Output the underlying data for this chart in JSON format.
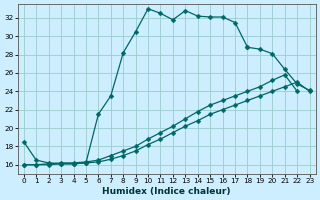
{
  "xlabel": "Humidex (Indice chaleur)",
  "bg_color": "#cceeff",
  "grid_color": "#99cccc",
  "line_color": "#006666",
  "xlim": [
    -0.5,
    23.5
  ],
  "ylim": [
    15.0,
    33.5
  ],
  "xticks": [
    0,
    1,
    2,
    3,
    4,
    5,
    6,
    7,
    8,
    9,
    10,
    11,
    12,
    13,
    14,
    15,
    16,
    17,
    18,
    19,
    20,
    21,
    22,
    23
  ],
  "yticks": [
    16,
    18,
    20,
    22,
    24,
    26,
    28,
    30,
    32
  ],
  "line1_x": [
    0,
    1,
    2,
    3,
    4,
    5,
    6,
    7,
    8,
    9,
    10,
    11,
    12,
    13,
    14,
    15,
    16,
    17,
    18
  ],
  "line1_y": [
    18.5,
    16.5,
    16.2,
    16.1,
    16.1,
    16.2,
    21.5,
    23.5,
    28.2,
    30.5,
    33.0,
    32.5,
    31.8,
    32.8,
    32.2,
    32.1,
    32.1,
    31.5,
    28.8
  ],
  "line2_x": [
    18,
    19,
    20,
    21,
    22,
    23
  ],
  "line2_y": [
    28.8,
    28.6,
    28.1,
    26.4,
    24.8,
    24.1
  ],
  "line3_x": [
    0,
    1,
    2,
    3,
    4,
    5,
    6,
    7,
    8,
    9,
    10,
    11,
    12,
    13,
    14,
    15,
    16,
    17,
    18,
    19,
    20,
    21,
    22
  ],
  "line3_y": [
    16.0,
    16.0,
    16.1,
    16.2,
    16.2,
    16.3,
    16.5,
    17.0,
    17.5,
    18.0,
    18.8,
    19.5,
    20.2,
    21.0,
    21.8,
    22.5,
    23.0,
    23.5,
    24.0,
    24.5,
    25.2,
    25.8,
    24.0
  ],
  "line4_x": [
    0,
    1,
    2,
    3,
    4,
    5,
    6,
    7,
    8,
    9,
    10,
    11,
    12,
    13,
    14,
    15,
    16,
    17,
    18,
    19,
    20,
    21,
    22,
    23
  ],
  "line4_y": [
    16.0,
    16.0,
    16.0,
    16.1,
    16.1,
    16.2,
    16.3,
    16.6,
    17.0,
    17.5,
    18.2,
    18.8,
    19.5,
    20.2,
    20.8,
    21.5,
    22.0,
    22.5,
    23.0,
    23.5,
    24.0,
    24.5,
    25.0,
    24.0
  ],
  "marker_size": 2.5,
  "linewidth": 0.9,
  "tick_fontsize": 5.2,
  "xlabel_fontsize": 6.5
}
